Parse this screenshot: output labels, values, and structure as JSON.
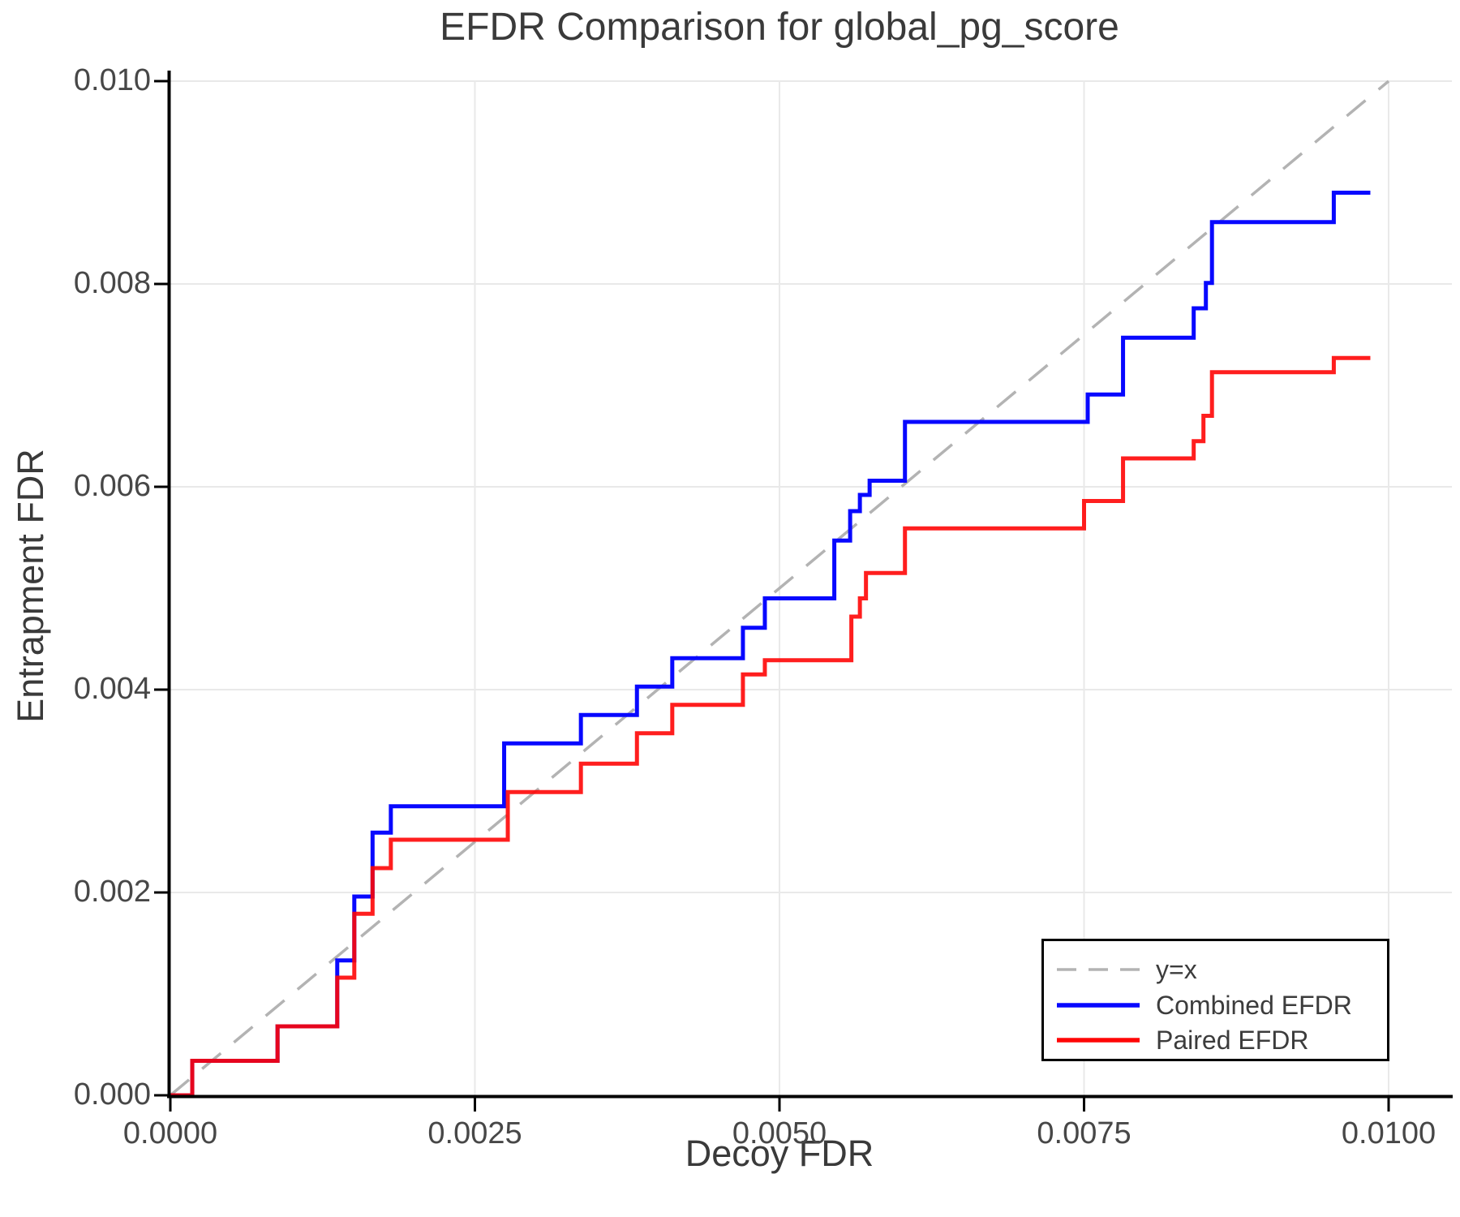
{
  "title": "EFDR Comparison for global_pg_score",
  "axes": {
    "xlabel": "Decoy FDR",
    "ylabel": "Entrapment FDR",
    "x_tick_labels": [
      "0.0000",
      "0.0025",
      "0.0050",
      "0.0075",
      "0.0100"
    ],
    "y_tick_labels": [
      "0.000",
      "0.002",
      "0.004",
      "0.006",
      "0.008",
      "0.010"
    ]
  },
  "legend": {
    "items": [
      {
        "label": "y=x",
        "color": "#b3b3b3",
        "style": "dashed"
      },
      {
        "label": "Combined EFDR",
        "color": "#0808ff",
        "style": "solid"
      },
      {
        "label": "Paired EFDR",
        "color": "#ff0606",
        "style": "solid"
      }
    ]
  },
  "chart_data": {
    "type": "line",
    "subtype": "step-post",
    "title": "EFDR Comparison for global_pg_score",
    "xlabel": "Decoy FDR",
    "ylabel": "Entrapment FDR",
    "xlim": [
      0.0,
      0.01
    ],
    "ylim": [
      0.0,
      0.01
    ],
    "x_ticks": [
      0.0,
      0.0025,
      0.005,
      0.0075,
      0.01
    ],
    "y_ticks": [
      0.0,
      0.002,
      0.004,
      0.006,
      0.008,
      0.01
    ],
    "grid": true,
    "legend_position": "lower right",
    "series": [
      {
        "name": "y=x",
        "kind": "identity-line",
        "style": "dashed",
        "color": "#b3b3b3",
        "width": 3.5,
        "points": [
          [
            0.0,
            0.0
          ],
          [
            0.01,
            0.01
          ]
        ]
      },
      {
        "name": "Combined EFDR",
        "kind": "step",
        "style": "solid",
        "color": "#0808ff",
        "opacity": 1.0,
        "width": 5,
        "start": [
          0.0,
          0.0
        ],
        "end_x": 0.00985,
        "steps": [
          [
            0.00018,
            0.00034
          ],
          [
            0.00088,
            0.00068
          ],
          [
            0.00137,
            0.00133
          ],
          [
            0.00151,
            0.00196
          ],
          [
            0.00166,
            0.00259
          ],
          [
            0.00181,
            0.00285
          ],
          [
            0.00274,
            0.00347
          ],
          [
            0.00337,
            0.00375
          ],
          [
            0.00383,
            0.00403
          ],
          [
            0.00412,
            0.00431
          ],
          [
            0.0047,
            0.00461
          ],
          [
            0.00488,
            0.0049
          ],
          [
            0.00545,
            0.00547
          ],
          [
            0.00558,
            0.00576
          ],
          [
            0.00566,
            0.00592
          ],
          [
            0.00574,
            0.00606
          ],
          [
            0.00603,
            0.00664
          ],
          [
            0.00753,
            0.00691
          ],
          [
            0.00782,
            0.00747
          ],
          [
            0.0084,
            0.00776
          ],
          [
            0.0085,
            0.00801
          ],
          [
            0.00855,
            0.00861
          ],
          [
            0.00955,
            0.0089
          ]
        ]
      },
      {
        "name": "Paired EFDR",
        "kind": "step",
        "style": "solid",
        "color": "#ff0606",
        "opacity": 0.9,
        "width": 5,
        "start": [
          0.0,
          0.0
        ],
        "end_x": 0.00985,
        "steps": [
          [
            0.00018,
            0.00034
          ],
          [
            0.00088,
            0.00068
          ],
          [
            0.00137,
            0.00116
          ],
          [
            0.00151,
            0.00179
          ],
          [
            0.00166,
            0.00224
          ],
          [
            0.00181,
            0.00252
          ],
          [
            0.00277,
            0.00299
          ],
          [
            0.00337,
            0.00327
          ],
          [
            0.00383,
            0.00357
          ],
          [
            0.00412,
            0.00385
          ],
          [
            0.0047,
            0.00415
          ],
          [
            0.00488,
            0.00429
          ],
          [
            0.00559,
            0.00472
          ],
          [
            0.00566,
            0.0049
          ],
          [
            0.00571,
            0.00515
          ],
          [
            0.00603,
            0.00559
          ],
          [
            0.0075,
            0.00586
          ],
          [
            0.00782,
            0.00628
          ],
          [
            0.0084,
            0.00645
          ],
          [
            0.00848,
            0.0067
          ],
          [
            0.00855,
            0.00713
          ],
          [
            0.00955,
            0.00727
          ]
        ]
      }
    ]
  }
}
